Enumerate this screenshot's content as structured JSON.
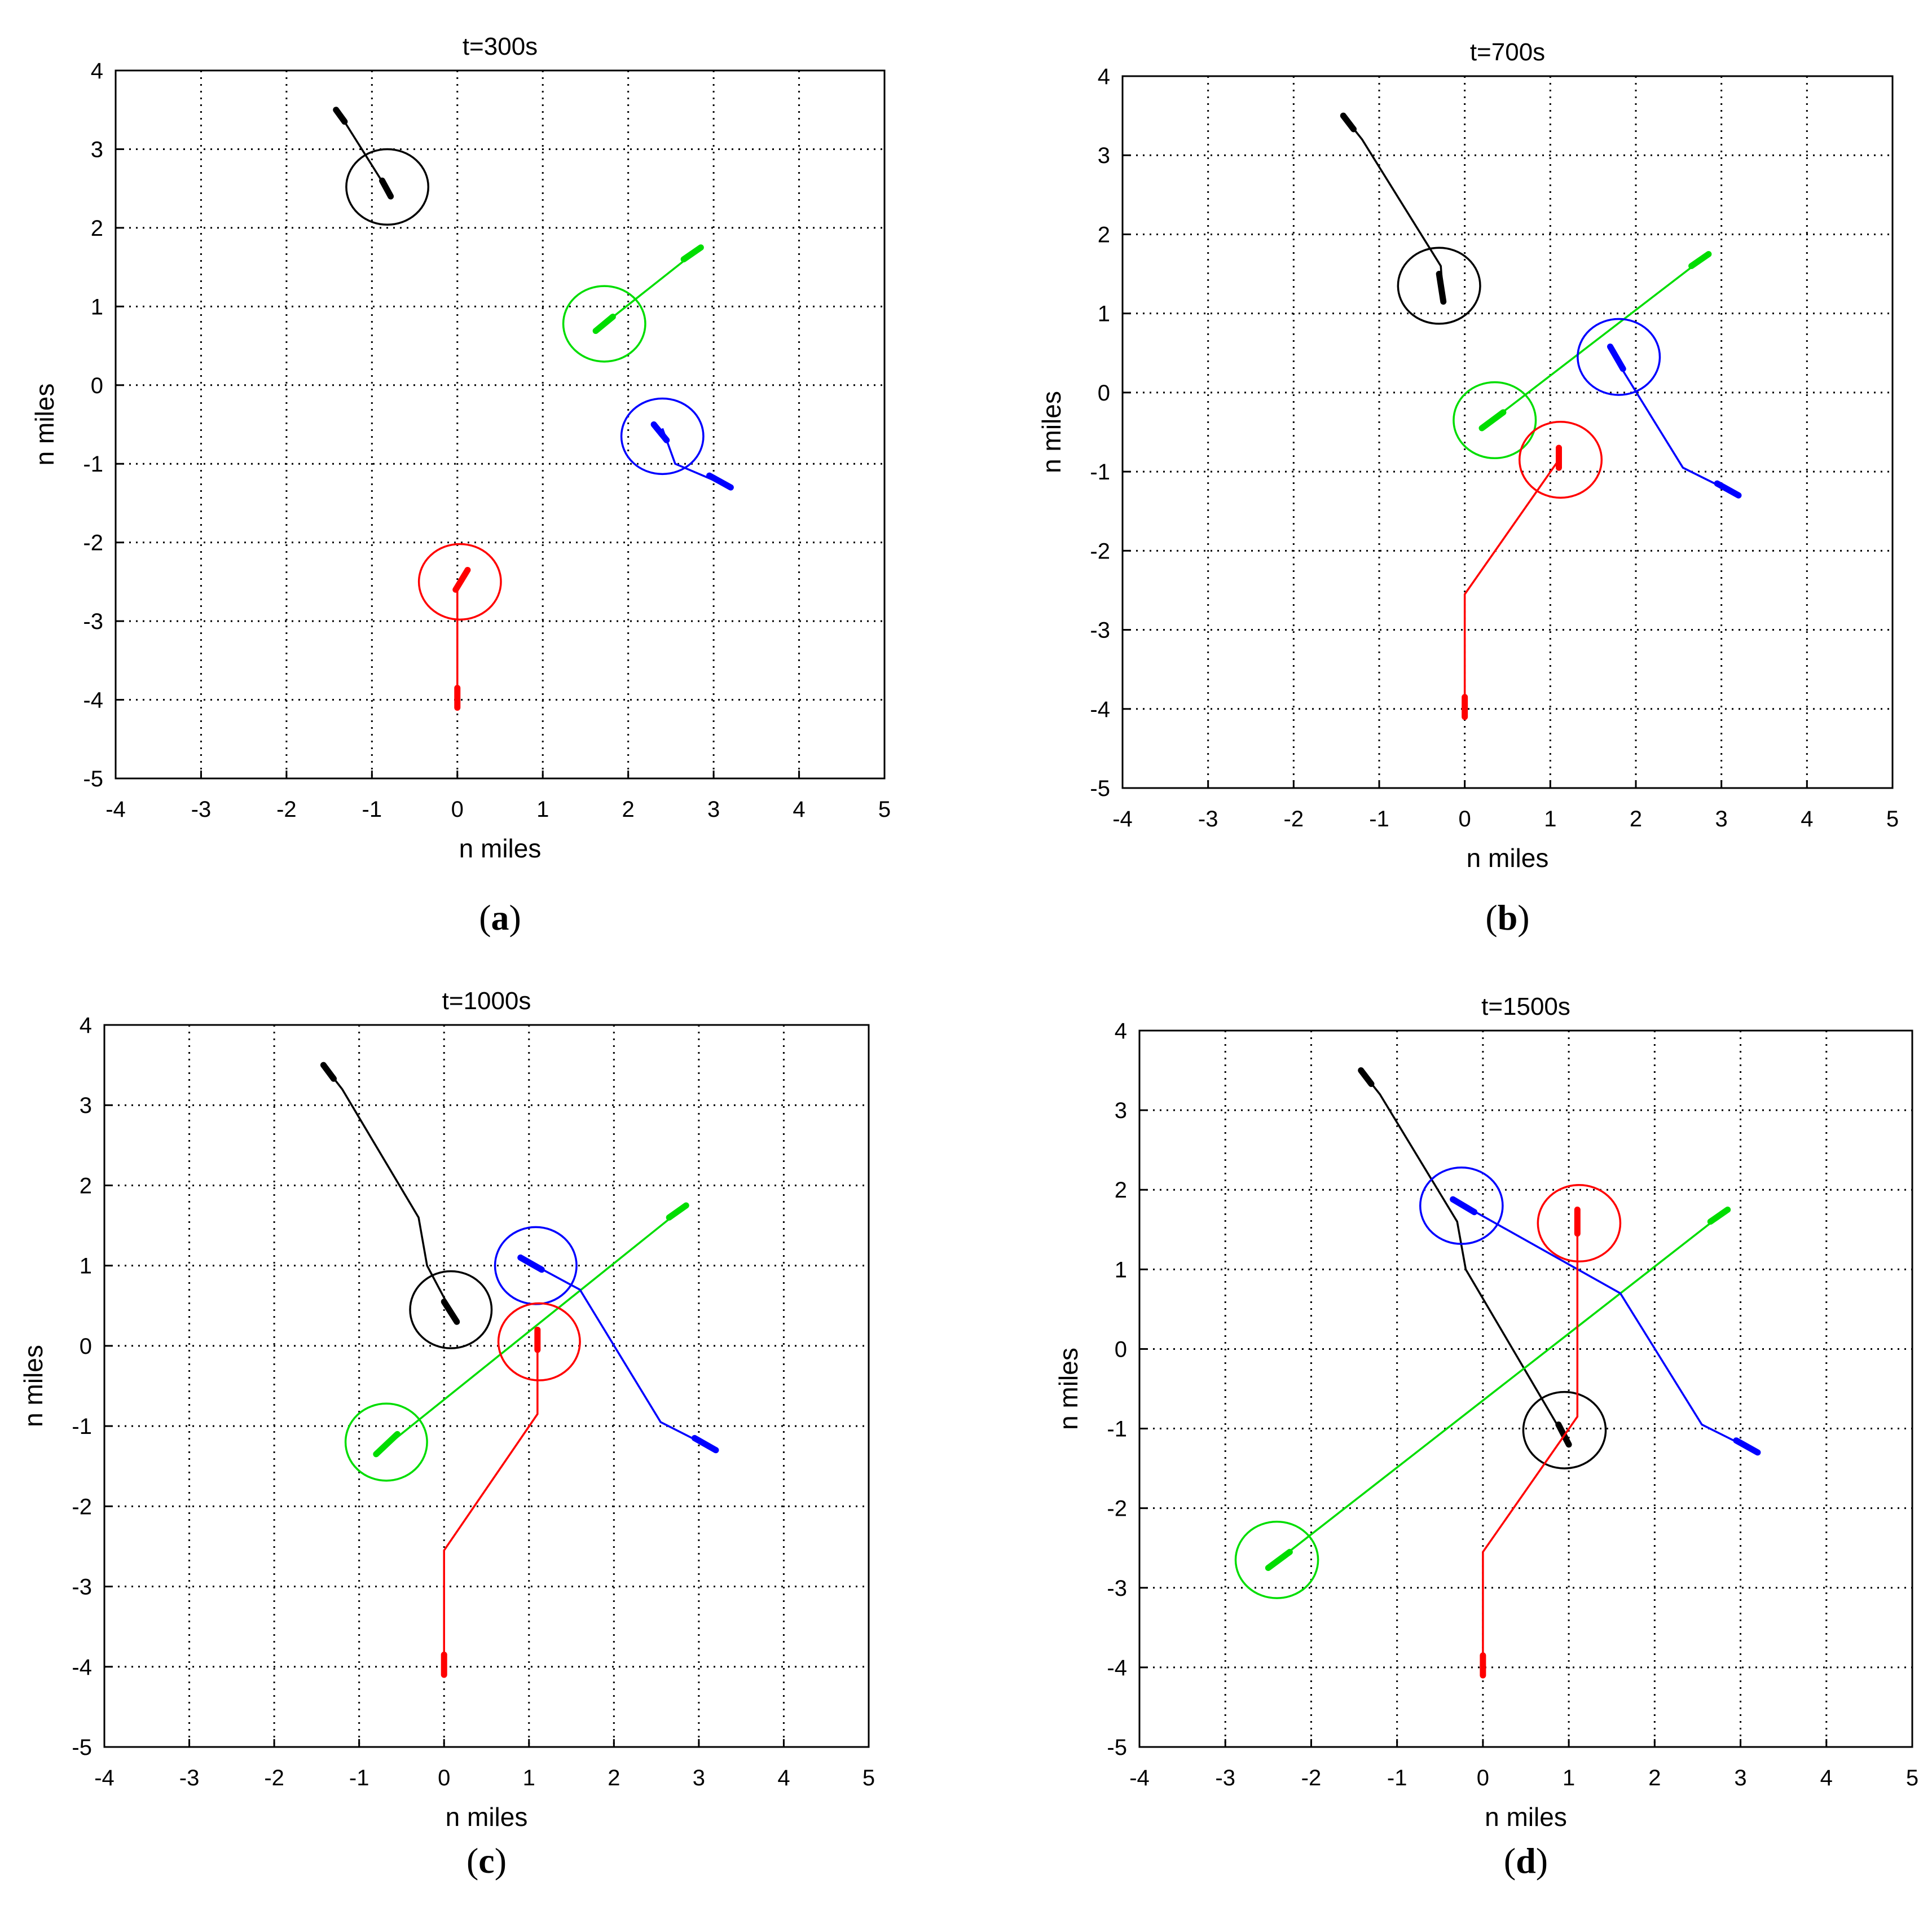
{
  "chart_data": [
    {
      "type": "line",
      "panel": "a",
      "panel_label": "a",
      "title": "t=300s",
      "xlabel": "n miles",
      "ylabel": "n miles",
      "xlim": [
        -4,
        5
      ],
      "ylim": [
        -5,
        4
      ],
      "xticks": [
        -4,
        -3,
        -2,
        -1,
        0,
        1,
        2,
        3,
        4,
        5
      ],
      "yticks": [
        -5,
        -4,
        -3,
        -2,
        -1,
        0,
        1,
        2,
        3,
        4
      ],
      "grid": true,
      "series": [
        {
          "color": "#000000",
          "x": [
            -1.35,
            -0.8
          ],
          "y": [
            3.4,
            2.45
          ],
          "ship_start": [
            [
              -1.42,
              3.5
            ],
            [
              -1.32,
              3.35
            ]
          ],
          "ship_now": [
            [
              -0.88,
              2.6
            ],
            [
              -0.78,
              2.4
            ]
          ],
          "circle": {
            "x": -0.82,
            "y": 2.52
          }
        },
        {
          "color": "#00dd00",
          "x": [
            2.85,
            1.65
          ],
          "y": [
            1.75,
            0.72
          ],
          "ship_start": [
            [
              2.85,
              1.75
            ],
            [
              2.65,
              1.6
            ]
          ],
          "ship_now": [
            [
              1.82,
              0.87
            ],
            [
              1.62,
              0.69
            ]
          ],
          "circle": {
            "x": 1.72,
            "y": 0.78
          }
        },
        {
          "color": "#0000ff",
          "x": [
            3.2,
            2.55,
            2.4
          ],
          "y": [
            -1.3,
            -1.0,
            -0.55
          ],
          "ship_start": [
            [
              3.2,
              -1.3
            ],
            [
              2.95,
              -1.15
            ]
          ],
          "ship_now": [
            [
              2.3,
              -0.5
            ],
            [
              2.45,
              -0.7
            ]
          ],
          "circle": {
            "x": 2.4,
            "y": -0.65
          }
        },
        {
          "color": "#ff0000",
          "x": [
            0.0,
            0.0,
            0.1
          ],
          "y": [
            -4.1,
            -2.6,
            -2.4
          ],
          "ship_start": [
            [
              0.0,
              -4.1
            ],
            [
              0.0,
              -3.85
            ]
          ],
          "ship_now": [
            [
              -0.02,
              -2.6
            ],
            [
              0.12,
              -2.35
            ]
          ],
          "circle": {
            "x": 0.03,
            "y": -2.5
          }
        }
      ]
    },
    {
      "type": "line",
      "panel": "b",
      "panel_label": "b",
      "title": "t=700s",
      "xlabel": "n miles",
      "ylabel": "n miles",
      "xlim": [
        -4,
        5
      ],
      "ylim": [
        -5,
        4
      ],
      "xticks": [
        -4,
        -3,
        -2,
        -1,
        0,
        1,
        2,
        3,
        4,
        5
      ],
      "yticks": [
        -5,
        -4,
        -3,
        -2,
        -1,
        0,
        1,
        2,
        3,
        4
      ],
      "grid": true,
      "series": [
        {
          "color": "#000000",
          "x": [
            -1.42,
            -1.2,
            -0.28,
            -0.25
          ],
          "y": [
            3.5,
            3.2,
            1.6,
            1.15
          ],
          "ship_start": [
            [
              -1.42,
              3.5
            ],
            [
              -1.3,
              3.33
            ]
          ],
          "ship_now": [
            [
              -0.3,
              1.5
            ],
            [
              -0.25,
              1.15
            ]
          ],
          "circle": {
            "x": -0.3,
            "y": 1.35
          }
        },
        {
          "color": "#00dd00",
          "x": [
            2.85,
            0.2
          ],
          "y": [
            1.75,
            -0.45
          ],
          "ship_start": [
            [
              2.85,
              1.75
            ],
            [
              2.65,
              1.6
            ]
          ],
          "ship_now": [
            [
              0.45,
              -0.25
            ],
            [
              0.2,
              -0.45
            ]
          ],
          "circle": {
            "x": 0.35,
            "y": -0.35
          }
        },
        {
          "color": "#0000ff",
          "x": [
            3.2,
            2.55,
            1.75,
            1.7
          ],
          "y": [
            -1.3,
            -0.95,
            0.45,
            0.55
          ],
          "ship_start": [
            [
              3.2,
              -1.3
            ],
            [
              2.95,
              -1.15
            ]
          ],
          "ship_now": [
            [
              1.7,
              0.58
            ],
            [
              1.85,
              0.3
            ]
          ],
          "circle": {
            "x": 1.8,
            "y": 0.45
          }
        },
        {
          "color": "#ff0000",
          "x": [
            0.0,
            0.0,
            1.1,
            1.1
          ],
          "y": [
            -4.1,
            -2.55,
            -0.85,
            -0.7
          ],
          "ship_start": [
            [
              0.0,
              -4.1
            ],
            [
              0.0,
              -3.85
            ]
          ],
          "ship_now": [
            [
              1.1,
              -0.95
            ],
            [
              1.1,
              -0.7
            ]
          ],
          "circle": {
            "x": 1.12,
            "y": -0.85
          }
        }
      ]
    },
    {
      "type": "line",
      "panel": "c",
      "panel_label": "c",
      "title": "t=1000s",
      "xlabel": "n miles",
      "ylabel": "n miles",
      "xlim": [
        -4,
        5
      ],
      "ylim": [
        -5,
        4
      ],
      "xticks": [
        -4,
        -3,
        -2,
        -1,
        0,
        1,
        2,
        3,
        4,
        5
      ],
      "yticks": [
        -5,
        -4,
        -3,
        -2,
        -1,
        0,
        1,
        2,
        3,
        4
      ],
      "grid": true,
      "series": [
        {
          "color": "#000000",
          "x": [
            -1.42,
            -1.2,
            -0.3,
            -0.2,
            0.15
          ],
          "y": [
            3.5,
            3.2,
            1.6,
            1.0,
            0.3
          ],
          "ship_start": [
            [
              -1.42,
              3.5
            ],
            [
              -1.3,
              3.33
            ]
          ],
          "ship_now": [
            [
              0.0,
              0.55
            ],
            [
              0.15,
              0.3
            ]
          ],
          "circle": {
            "x": 0.08,
            "y": 0.45
          }
        },
        {
          "color": "#00dd00",
          "x": [
            2.85,
            -0.8
          ],
          "y": [
            1.75,
            -1.35
          ],
          "ship_start": [
            [
              2.85,
              1.75
            ],
            [
              2.65,
              1.6
            ]
          ],
          "ship_now": [
            [
              -0.55,
              -1.1
            ],
            [
              -0.8,
              -1.35
            ]
          ],
          "circle": {
            "x": -0.68,
            "y": -1.2
          }
        },
        {
          "color": "#0000ff",
          "x": [
            3.2,
            2.55,
            1.6,
            0.9
          ],
          "y": [
            -1.3,
            -0.95,
            0.7,
            1.1
          ],
          "ship_start": [
            [
              3.2,
              -1.3
            ],
            [
              2.95,
              -1.15
            ]
          ],
          "ship_now": [
            [
              0.9,
              1.1
            ],
            [
              1.15,
              0.95
            ]
          ],
          "circle": {
            "x": 1.08,
            "y": 1.0
          }
        },
        {
          "color": "#ff0000",
          "x": [
            0.0,
            0.0,
            1.1,
            1.1
          ],
          "y": [
            -4.1,
            -2.55,
            -0.85,
            0.2
          ],
          "ship_start": [
            [
              0.0,
              -4.1
            ],
            [
              0.0,
              -3.85
            ]
          ],
          "ship_now": [
            [
              1.1,
              -0.05
            ],
            [
              1.1,
              0.2
            ]
          ],
          "circle": {
            "x": 1.12,
            "y": 0.05
          }
        }
      ]
    },
    {
      "type": "line",
      "panel": "d",
      "panel_label": "d",
      "title": "t=1500s",
      "xlabel": "n miles",
      "ylabel": "n miles",
      "xlim": [
        -4,
        5
      ],
      "ylim": [
        -5,
        4
      ],
      "xticks": [
        -4,
        -3,
        -2,
        -1,
        0,
        1,
        2,
        3,
        4,
        5
      ],
      "yticks": [
        -5,
        -4,
        -3,
        -2,
        -1,
        0,
        1,
        2,
        3,
        4
      ],
      "grid": true,
      "series": [
        {
          "color": "#000000",
          "x": [
            -1.42,
            -1.2,
            -0.3,
            -0.2,
            1.0
          ],
          "y": [
            3.5,
            3.2,
            1.6,
            1.0,
            -1.2
          ],
          "ship_start": [
            [
              -1.42,
              3.5
            ],
            [
              -1.3,
              3.33
            ]
          ],
          "ship_now": [
            [
              0.88,
              -0.95
            ],
            [
              1.0,
              -1.2
            ]
          ],
          "circle": {
            "x": 0.95,
            "y": -1.02
          }
        },
        {
          "color": "#00dd00",
          "x": [
            2.85,
            -2.5
          ],
          "y": [
            1.75,
            -2.75
          ],
          "ship_start": [
            [
              2.85,
              1.75
            ],
            [
              2.65,
              1.6
            ]
          ],
          "ship_now": [
            [
              -2.25,
              -2.55
            ],
            [
              -2.5,
              -2.75
            ]
          ],
          "circle": {
            "x": -2.4,
            "y": -2.65
          }
        },
        {
          "color": "#0000ff",
          "x": [
            3.2,
            2.55,
            1.6,
            -0.3
          ],
          "y": [
            -1.3,
            -0.95,
            0.7,
            1.85
          ],
          "ship_start": [
            [
              3.2,
              -1.3
            ],
            [
              2.95,
              -1.15
            ]
          ],
          "ship_now": [
            [
              -0.35,
              1.88
            ],
            [
              -0.1,
              1.72
            ]
          ],
          "circle": {
            "x": -0.25,
            "y": 1.8
          }
        },
        {
          "color": "#ff0000",
          "x": [
            0.0,
            0.0,
            1.1,
            1.1
          ],
          "y": [
            -4.1,
            -2.55,
            -0.85,
            1.75
          ],
          "ship_start": [
            [
              0.0,
              -4.1
            ],
            [
              0.0,
              -3.85
            ]
          ],
          "ship_now": [
            [
              1.1,
              1.45
            ],
            [
              1.1,
              1.75
            ]
          ],
          "circle": {
            "x": 1.12,
            "y": 1.58
          }
        }
      ]
    }
  ]
}
